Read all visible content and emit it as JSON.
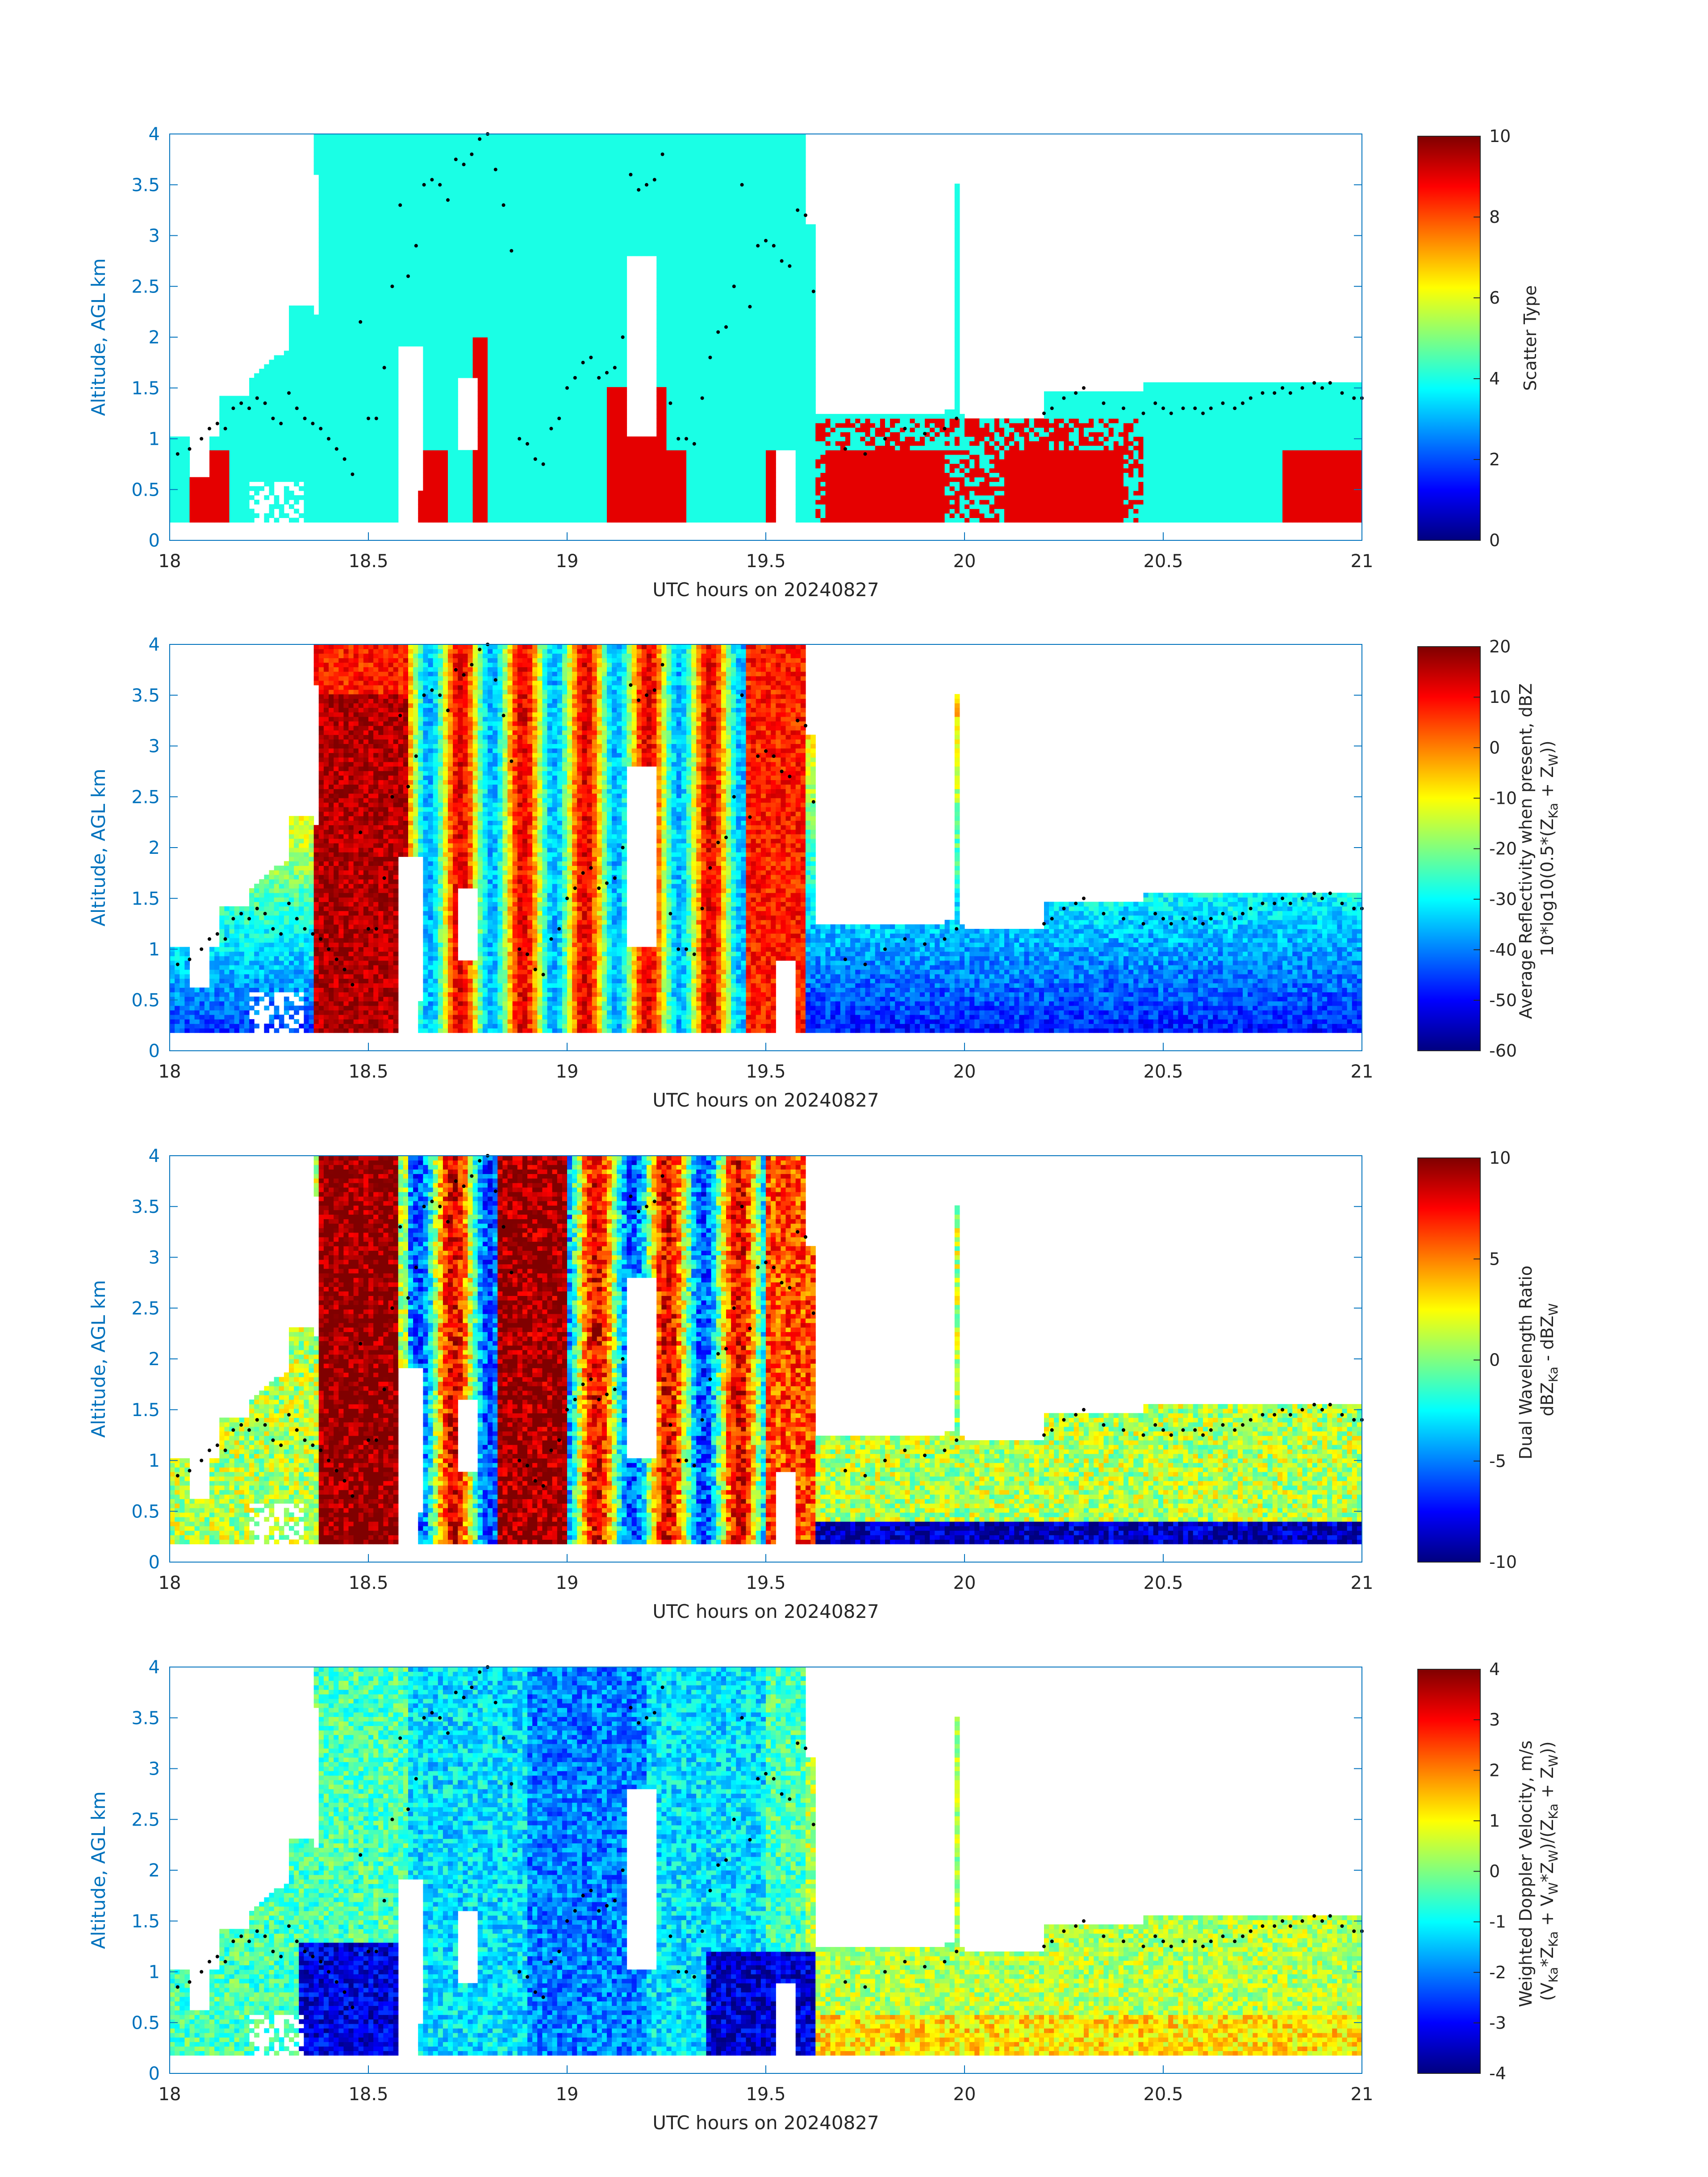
{
  "chart_data": [
    {
      "type": "heatmap",
      "xlabel": "UTC hours on 20240827",
      "ylabel": "Altitude, AGL km",
      "xlim": [
        18,
        21
      ],
      "ylim": [
        0,
        4
      ],
      "xticks": [
        "18",
        "18.5",
        "19",
        "19.5",
        "20",
        "20.5",
        "21"
      ],
      "yticks": [
        "0",
        "0.5",
        "1",
        "1.5",
        "2",
        "2.5",
        "3",
        "3.5",
        "4"
      ],
      "colorbar": {
        "label": "Scatter Type",
        "ticks": [
          "0",
          "2",
          "4",
          "6",
          "8",
          "10"
        ],
        "range": [
          0,
          10
        ]
      },
      "field": "scatter_type",
      "values_note_style": "categorical: cyan≈4 (ice), orange-red≈9 (liquid)"
    },
    {
      "type": "heatmap",
      "xlabel": "UTC hours on 20240827",
      "ylabel": "Altitude, AGL km",
      "xlim": [
        18,
        21
      ],
      "ylim": [
        0,
        4
      ],
      "xticks": [
        "18",
        "18.5",
        "19",
        "19.5",
        "20",
        "20.5",
        "21"
      ],
      "yticks": [
        "0",
        "0.5",
        "1",
        "1.5",
        "2",
        "2.5",
        "3",
        "3.5",
        "4"
      ],
      "colorbar": {
        "label": "Average Reflectivity when present, dBZ",
        "label2": "10*log10(0.5*(Z<sub>Ka</sub> + Z<sub>W</sub>))",
        "ticks": [
          "-60",
          "-50",
          "-40",
          "-30",
          "-20",
          "-10",
          "0",
          "10",
          "20"
        ],
        "range": [
          -60,
          20
        ]
      },
      "field": "reflectivity"
    },
    {
      "type": "heatmap",
      "xlabel": "UTC hours on 20240827",
      "ylabel": "Altitude, AGL km",
      "xlim": [
        18,
        21
      ],
      "ylim": [
        0,
        4
      ],
      "xticks": [
        "18",
        "18.5",
        "19",
        "19.5",
        "20",
        "20.5",
        "21"
      ],
      "yticks": [
        "0",
        "0.5",
        "1",
        "1.5",
        "2",
        "2.5",
        "3",
        "3.5",
        "4"
      ],
      "colorbar": {
        "label": "Dual Wavelength Ratio",
        "label2": "dBZ<sub>Ka</sub> - dBZ<sub>W</sub>",
        "ticks": [
          "-10",
          "-5",
          "0",
          "5",
          "10"
        ],
        "range": [
          -10,
          10
        ]
      },
      "field": "dwr"
    },
    {
      "type": "heatmap",
      "xlabel": "UTC hours on 20240827",
      "ylabel": "Altitude, AGL km",
      "xlim": [
        18,
        21
      ],
      "ylim": [
        0,
        4
      ],
      "xticks": [
        "18",
        "18.5",
        "19",
        "19.5",
        "20",
        "20.5",
        "21"
      ],
      "yticks": [
        "0",
        "0.5",
        "1",
        "1.5",
        "2",
        "2.5",
        "3",
        "3.5",
        "4"
      ],
      "colorbar": {
        "label": "Weighted Doppler Velocity, m/s",
        "label2": "(V<sub>Ka</sub>*Z<sub>Ka</sub> + V<sub>W</sub>*Z<sub>W</sub>)/(Z<sub>Ka</sub> + Z<sub>W</sub>)",
        "ticks": [
          "-4",
          "-3",
          "-2",
          "-1",
          "0",
          "1",
          "2",
          "3",
          "4"
        ],
        "range": [
          -4,
          4
        ]
      },
      "field": "velocity"
    }
  ],
  "cloud_base_dots": {
    "x": [
      18.02,
      18.05,
      18.08,
      18.1,
      18.12,
      18.14,
      18.16,
      18.18,
      18.2,
      18.22,
      18.24,
      18.26,
      18.28,
      18.3,
      18.32,
      18.34,
      18.36,
      18.38,
      18.4,
      18.42,
      18.44,
      18.46,
      18.48,
      18.5,
      18.52,
      18.54,
      18.56,
      18.58,
      18.6,
      18.62,
      18.64,
      18.66,
      18.68,
      18.7,
      18.72,
      18.74,
      18.76,
      18.78,
      18.8,
      18.82,
      18.84,
      18.86,
      18.88,
      18.9,
      18.92,
      18.94,
      18.96,
      18.98,
      19.0,
      19.02,
      19.04,
      19.06,
      19.08,
      19.1,
      19.12,
      19.14,
      19.16,
      19.18,
      19.2,
      19.22,
      19.24,
      19.26,
      19.28,
      19.3,
      19.32,
      19.34,
      19.36,
      19.38,
      19.4,
      19.42,
      19.44,
      19.46,
      19.48,
      19.5,
      19.52,
      19.54,
      19.56,
      19.58,
      19.6,
      19.62,
      19.7,
      19.75,
      19.8,
      19.85,
      19.9,
      19.95,
      19.98,
      20.2,
      20.22,
      20.25,
      20.28,
      20.3,
      20.35,
      20.4,
      20.45,
      20.48,
      20.5,
      20.52,
      20.55,
      20.58,
      20.6,
      20.62,
      20.65,
      20.68,
      20.7,
      20.72,
      20.75,
      20.78,
      20.8,
      20.82,
      20.85,
      20.88,
      20.9,
      20.92,
      20.95,
      20.98,
      21.0
    ],
    "y": [
      0.85,
      0.9,
      1.0,
      1.1,
      1.15,
      1.1,
      1.3,
      1.35,
      1.3,
      1.4,
      1.35,
      1.2,
      1.15,
      1.45,
      1.3,
      1.2,
      1.15,
      1.1,
      1.0,
      0.9,
      0.8,
      0.65,
      2.15,
      1.2,
      1.2,
      1.7,
      2.5,
      3.3,
      2.6,
      2.9,
      3.5,
      3.55,
      3.5,
      3.35,
      3.75,
      3.7,
      3.8,
      3.95,
      4.0,
      3.65,
      3.3,
      2.85,
      1.0,
      0.95,
      0.8,
      0.75,
      1.1,
      1.2,
      1.5,
      1.6,
      1.75,
      1.8,
      1.6,
      1.65,
      1.7,
      2.0,
      3.6,
      3.45,
      3.5,
      3.55,
      3.8,
      1.35,
      1.0,
      1.0,
      0.95,
      1.4,
      1.8,
      2.05,
      2.1,
      2.5,
      3.5,
      2.3,
      2.9,
      2.95,
      2.9,
      2.75,
      2.7,
      3.25,
      3.2,
      2.45,
      0.9,
      0.85,
      1.0,
      1.1,
      1.05,
      1.1,
      1.2,
      1.25,
      1.3,
      1.4,
      1.45,
      1.5,
      1.35,
      1.3,
      1.25,
      1.35,
      1.3,
      1.25,
      1.3,
      1.3,
      1.25,
      1.3,
      1.35,
      1.3,
      1.35,
      1.4,
      1.45,
      1.45,
      1.5,
      1.45,
      1.5,
      1.55,
      1.5,
      1.55,
      1.45,
      1.4,
      1.4
    ]
  }
}
